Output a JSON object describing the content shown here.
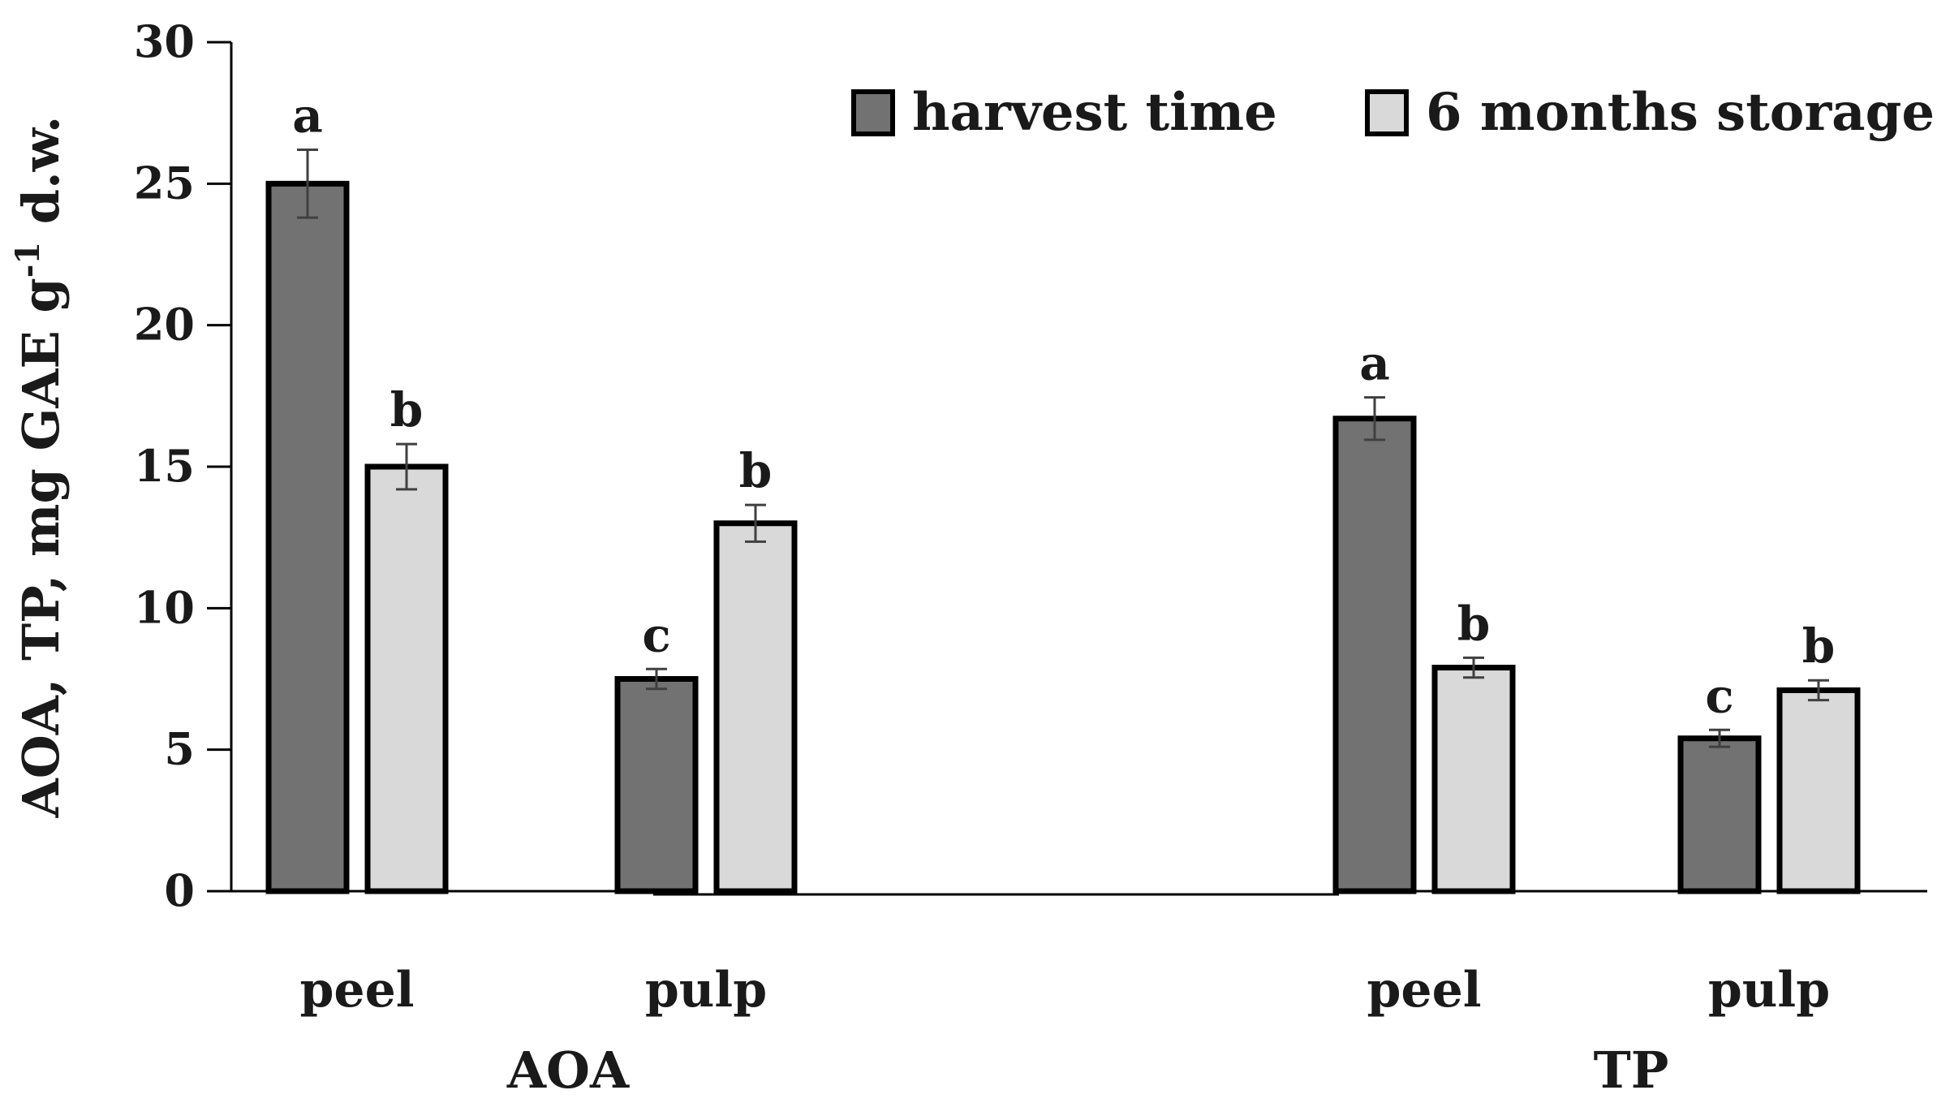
{
  "chart_data": {
    "type": "bar",
    "ylabel": "AOA, TP, mg GAE g-1 d.w.",
    "ylabel_parts": {
      "main": "AOA, TP, mg GAE g",
      "sup": "-1",
      "tail": " d.w."
    },
    "ylim": [
      0,
      30
    ],
    "yticks": [
      0,
      5,
      10,
      15,
      20,
      25,
      30
    ],
    "legend_position": "top-right",
    "series": [
      {
        "name": "harvest time",
        "color": "#727272"
      },
      {
        "name": "6 months storage",
        "color": "#d9d9d9"
      }
    ],
    "groups": [
      {
        "name": "AOA",
        "categories": [
          {
            "name": "peel",
            "values": [
              25.0,
              15.0
            ],
            "errors": [
              1.2,
              0.8
            ],
            "letters": [
              "a",
              "b"
            ]
          },
          {
            "name": "pulp",
            "values": [
              7.5,
              13.0
            ],
            "errors": [
              0.35,
              0.65
            ],
            "letters": [
              "c",
              "b"
            ]
          }
        ]
      },
      {
        "name": "TP",
        "categories": [
          {
            "name": "peel",
            "values": [
              16.7,
              7.9
            ],
            "errors": [
              0.75,
              0.35
            ],
            "letters": [
              "a",
              "b"
            ]
          },
          {
            "name": "pulp",
            "values": [
              5.4,
              7.1
            ],
            "errors": [
              0.3,
              0.35
            ],
            "letters": [
              "c",
              "b"
            ]
          }
        ]
      }
    ]
  }
}
